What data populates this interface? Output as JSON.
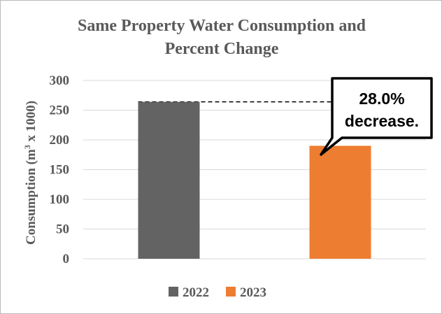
{
  "chart_data": {
    "type": "bar",
    "title_line1": "Same Property Water Consumption and",
    "title_line2": "Percent Change",
    "ylabel_main": "Consumption (m",
    "ylabel_sup": "3",
    "ylabel_tail": " x 1000)",
    "xlabel": "",
    "ylim": [
      0,
      300
    ],
    "yticks": [
      0,
      50,
      100,
      150,
      200,
      250,
      300
    ],
    "grid": true,
    "categories": [
      "2022",
      "2023"
    ],
    "series": [
      {
        "name": "2022",
        "color": "#636363",
        "values": [
          264,
          null
        ]
      },
      {
        "name": "2023",
        "color": "#ed7d31",
        "values": [
          null,
          190
        ]
      }
    ],
    "reference_line": {
      "value": 264,
      "style": "dashed"
    },
    "annotation": {
      "line1": "28.0%",
      "line2": "decrease."
    },
    "legend_position": "bottom-center"
  }
}
